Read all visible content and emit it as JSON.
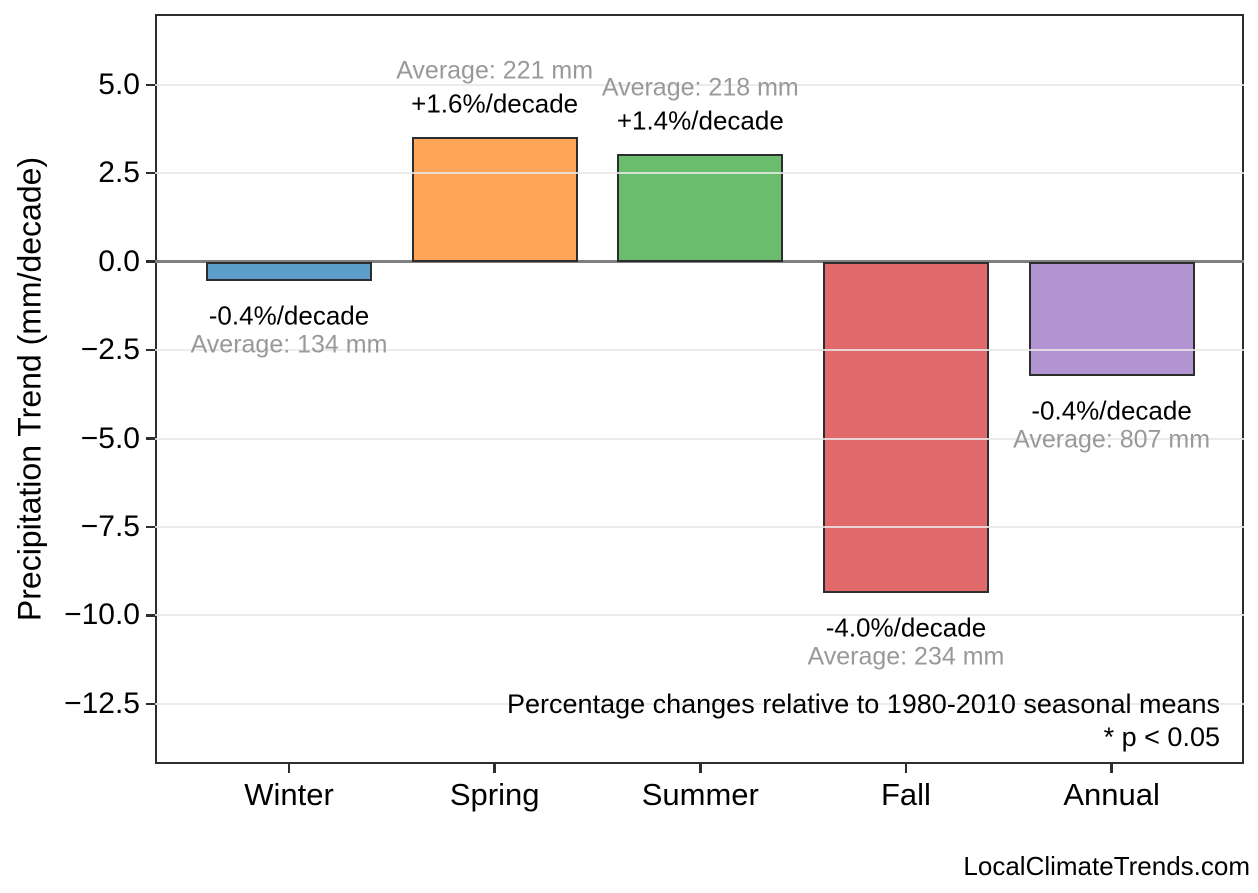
{
  "watermark": "LocalClimateTrends.com",
  "chart_data": {
    "type": "bar",
    "title": "",
    "xlabel": "",
    "ylabel": "Precipitation Trend (mm/decade)",
    "categories": [
      "Winter",
      "Spring",
      "Summer",
      "Fall",
      "Annual"
    ],
    "values": [
      -0.536,
      3.536,
      3.052,
      -9.36,
      -3.228
    ],
    "pct_per_decade": [
      -0.4,
      1.6,
      1.4,
      -4.0,
      -0.4
    ],
    "averages_mm": [
      134,
      221,
      218,
      234,
      807
    ],
    "pct_labels": [
      "-0.4%/decade",
      "+1.6%/decade",
      "+1.4%/decade",
      "-4.0%/decade",
      "-0.4%/decade"
    ],
    "avg_labels": [
      "Average: 134 mm",
      "Average: 221 mm",
      "Average: 218 mm",
      "Average: 234 mm",
      "Average: 807 mm"
    ],
    "bar_colors": [
      "#5C9DC9",
      "#FFA558",
      "#69BD6D",
      "#E06A6B",
      "#B294D3"
    ],
    "bar_edge_color": "#2d2d2d",
    "yticks": [
      {
        "value": 5.0,
        "label": "5.0"
      },
      {
        "value": 2.5,
        "label": "2.5"
      },
      {
        "value": 0.0,
        "label": "0.0"
      },
      {
        "value": -2.5,
        "label": "−2.5"
      },
      {
        "value": -5.0,
        "label": "−5.0"
      },
      {
        "value": -7.5,
        "label": "−7.5"
      },
      {
        "value": -10.0,
        "label": "−10.0"
      },
      {
        "value": -12.5,
        "label": "−12.5"
      }
    ],
    "ylim": [
      -14.2,
      7.0
    ],
    "grid": true,
    "legend": "none",
    "zero_line": true,
    "annotations": [
      "Percentage changes relative to 1980-2010 seasonal means",
      "* p < 0.05"
    ]
  }
}
